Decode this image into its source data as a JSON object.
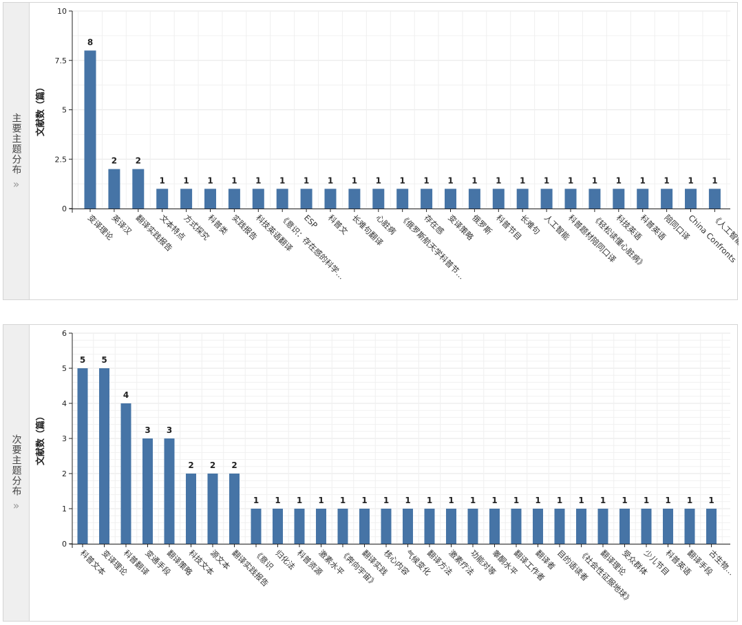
{
  "bar_color": "#4674a6",
  "grid_color": "#e6e6e6",
  "panels": [
    {
      "side_label": "主要主题分布",
      "chevron": "»"
    },
    {
      "side_label": "次要主题分布",
      "chevron": "»"
    }
  ],
  "chart_data": [
    {
      "type": "bar",
      "title": "",
      "xlabel": "",
      "ylabel": "文献数（篇）",
      "ylim": [
        0,
        10
      ],
      "yticks": [
        "0",
        "2.5",
        "5",
        "7.5",
        "10"
      ],
      "grid": true,
      "categories": [
        "变译理论",
        "英译汉",
        "翻译实践报告",
        "文本特点",
        "方式探究",
        "科普类",
        "实践报告",
        "科技英语翻译",
        "《意识：存在感的科学…",
        "ESP",
        "科普文",
        "长难句翻译",
        "心脏病",
        "《俄罗斯航天学科普节…",
        "存在感",
        "变译策略",
        "俄罗斯",
        "科普节目",
        "长难句",
        "人工智能",
        "科普题材陪同口译",
        "《轻松读懂心脏病》",
        "科技英语",
        "科普英语",
        "陪同口译",
        "China Confronts",
        "《人工智能…"
      ],
      "values": [
        8,
        2,
        2,
        1,
        1,
        1,
        1,
        1,
        1,
        1,
        1,
        1,
        1,
        1,
        1,
        1,
        1,
        1,
        1,
        1,
        1,
        1,
        1,
        1,
        1,
        1,
        1
      ],
      "data_labels": [
        "8",
        "2",
        "2",
        "1",
        "1",
        "1",
        "1",
        "1",
        "1",
        "1",
        "1",
        "1",
        "1",
        "1",
        "1",
        "1",
        "1",
        "1",
        "1",
        "1",
        "1",
        "1",
        "1",
        "1",
        "1",
        "1",
        "1"
      ]
    },
    {
      "type": "bar",
      "title": "",
      "xlabel": "",
      "ylabel": "文献数（篇）",
      "ylim": [
        0,
        6
      ],
      "yticks": [
        "0",
        "1",
        "2",
        "3",
        "4",
        "5",
        "6"
      ],
      "grid": true,
      "categories": [
        "科普文本",
        "变译理论",
        "科普翻译",
        "变通手段",
        "翻译策略",
        "科技文本",
        "源文本",
        "翻译实践报告",
        "《意识",
        "归化法",
        "科普资源",
        "激素水平",
        "《奔向宇宙》",
        "翻译实践",
        "核心内容",
        "气候变化",
        "翻译方法",
        "激素疗法",
        "功能对等",
        "睾酮水平",
        "翻译工作者",
        "翻译者",
        "目的语读者",
        "《社会性征服地球》",
        "翻译理论",
        "受众群体",
        "少儿节目",
        "科普英语",
        "翻译手段",
        "古生物…"
      ],
      "values": [
        5,
        5,
        4,
        3,
        3,
        2,
        2,
        2,
        1,
        1,
        1,
        1,
        1,
        1,
        1,
        1,
        1,
        1,
        1,
        1,
        1,
        1,
        1,
        1,
        1,
        1,
        1,
        1,
        1,
        1
      ],
      "data_labels": [
        "5",
        "5",
        "4",
        "3",
        "3",
        "2",
        "2",
        "2",
        "1",
        "1",
        "1",
        "1",
        "1",
        "1",
        "1",
        "1",
        "1",
        "1",
        "1",
        "1",
        "1",
        "1",
        "1",
        "1",
        "1",
        "1",
        "1",
        "1",
        "1",
        "1"
      ]
    }
  ]
}
